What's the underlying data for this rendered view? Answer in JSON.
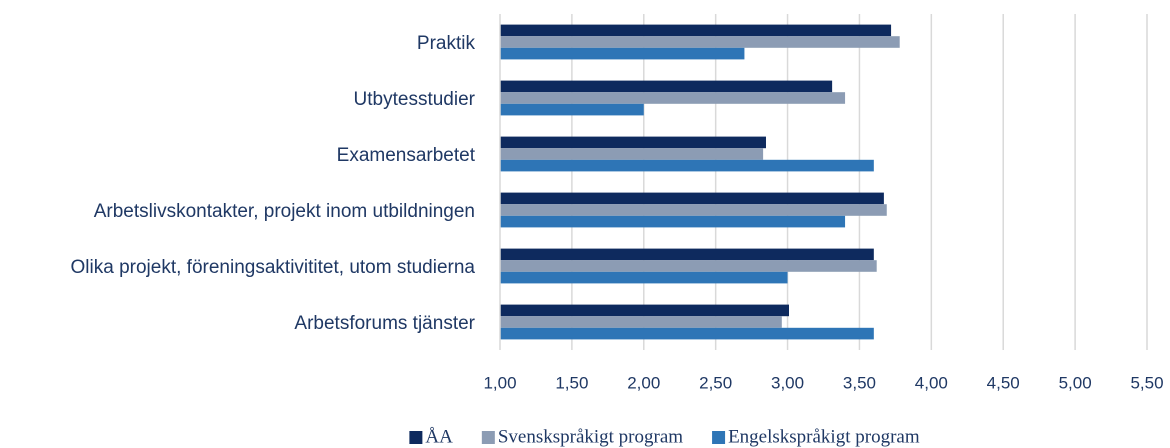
{
  "chart_data": {
    "type": "hbar",
    "categories": [
      "Praktik",
      "Utbytesstudier",
      "Examensarbetet",
      "Arbetslivskontakter, projekt inom utbildningen",
      "Olika projekt, föreningsaktivititet, utom studierna",
      "Arbetsforums tjänster"
    ],
    "series": [
      {
        "name": "ÅA",
        "color": "#0e2a5e",
        "values": [
          3.72,
          3.31,
          2.85,
          3.67,
          3.6,
          3.01
        ]
      },
      {
        "name": "Svenskspråkigt program",
        "color": "#8c9cb4",
        "values": [
          3.78,
          3.4,
          2.83,
          3.69,
          3.62,
          2.96
        ]
      },
      {
        "name": "Engelskspråkigt program",
        "color": "#2e75b6",
        "values": [
          2.7,
          2.0,
          3.6,
          3.4,
          3.0,
          3.6
        ]
      }
    ],
    "xlim": [
      1.0,
      5.5
    ],
    "xticks": [
      {
        "value": 1.0,
        "label": "1,00"
      },
      {
        "value": 1.5,
        "label": "1,50"
      },
      {
        "value": 2.0,
        "label": "2,00"
      },
      {
        "value": 2.5,
        "label": "2,50"
      },
      {
        "value": 3.0,
        "label": "3,00"
      },
      {
        "value": 3.5,
        "label": "3,50"
      },
      {
        "value": 4.0,
        "label": "4,00"
      },
      {
        "value": 4.5,
        "label": "4,50"
      },
      {
        "value": 5.0,
        "label": "5,00"
      },
      {
        "value": 5.5,
        "label": "5,50"
      }
    ],
    "grid": true,
    "legend": "bottom"
  }
}
